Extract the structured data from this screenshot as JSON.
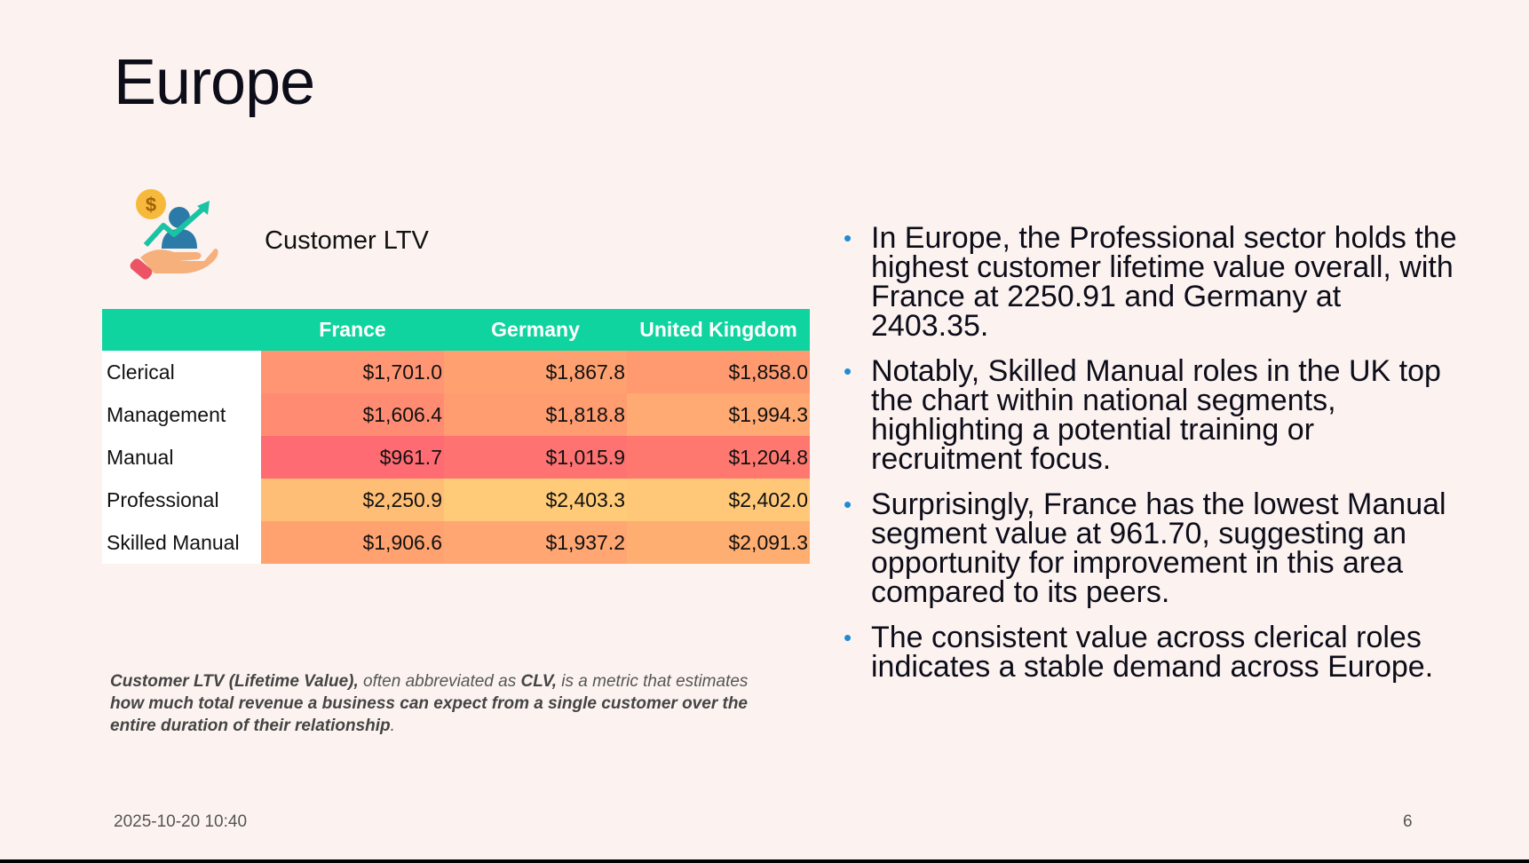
{
  "slide": {
    "title": "Europe",
    "section_label": "Customer LTV",
    "icon": "customer-ltv-icon",
    "table": {
      "corner": "",
      "columns": [
        "France",
        "Germany",
        "United Kingdom"
      ],
      "rows": [
        {
          "label": "Clerical",
          "cells": [
            {
              "value": "$1,701.0",
              "color": "#ff9572"
            },
            {
              "value": "$1,867.8",
              "color": "#ffa070"
            },
            {
              "value": "$1,858.0",
              "color": "#ff9a70"
            }
          ]
        },
        {
          "label": "Management",
          "cells": [
            {
              "value": "$1,606.4",
              "color": "#ff8c72"
            },
            {
              "value": "$1,818.8",
              "color": "#ff9c70"
            },
            {
              "value": "$1,994.3",
              "color": "#ffaa72"
            }
          ]
        },
        {
          "label": "Manual",
          "cells": [
            {
              "value": "$961.7",
              "color": "#ff6b72"
            },
            {
              "value": "$1,015.9",
              "color": "#ff7272"
            },
            {
              "value": "$1,204.8",
              "color": "#ff7870"
            }
          ]
        },
        {
          "label": "Professional",
          "cells": [
            {
              "value": "$2,250.9",
              "color": "#ffbe76"
            },
            {
              "value": "$2,403.3",
              "color": "#ffcb78"
            },
            {
              "value": "$2,402.0",
              "color": "#ffc878"
            }
          ]
        },
        {
          "label": "Skilled Manual",
          "cells": [
            {
              "value": "$1,906.6",
              "color": "#ffa270"
            },
            {
              "value": "$1,937.2",
              "color": "#ffa672"
            },
            {
              "value": "$2,091.3",
              "color": "#ffae72"
            }
          ]
        }
      ]
    },
    "note": {
      "part1": "Customer LTV (Lifetime Value),",
      "part2": " often abbreviated as ",
      "part3": "CLV,",
      "part4": "  is a metric that estimates ",
      "part5": "how much total revenue a business can expect from a single customer over the entire duration of their relationship",
      "part6": "."
    },
    "bullets": [
      " In Europe, the Professional sector holds the highest customer lifetime value overall, with France at 2250.91 and Germany at 2403.35.",
      " Notably, Skilled Manual roles in the UK top the chart within national segments, highlighting a potential training or recruitment focus.",
      " Surprisingly, France has the lowest Manual segment value at 961.70, suggesting an opportunity for improvement in this area compared to its peers.",
      " The consistent value across clerical roles indicates a stable demand across Europe."
    ],
    "bullet_glyph": "•",
    "footer": {
      "date": "2025-10-20 10:40",
      "page": "6"
    },
    "colors": {
      "header": "#0fd49f",
      "background": "#fcf3f0",
      "bullet": "#1f8ad6"
    }
  }
}
